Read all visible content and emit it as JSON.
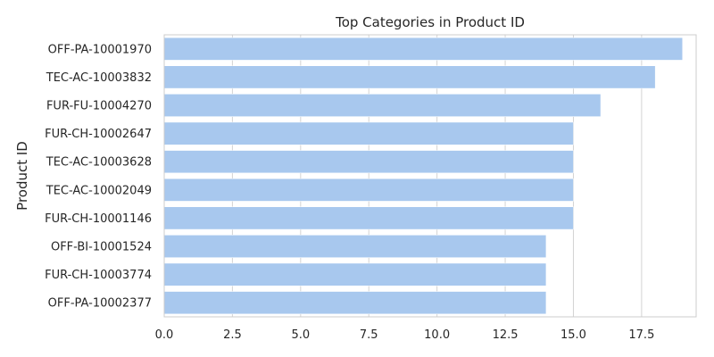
{
  "chart_data": {
    "type": "bar",
    "orientation": "horizontal",
    "title": "Top Categories in Product ID",
    "xlabel": "",
    "ylabel": "Product ID",
    "categories": [
      "OFF-PA-10001970",
      "TEC-AC-10003832",
      "FUR-FU-10004270",
      "FUR-CH-10002647",
      "TEC-AC-10003628",
      "TEC-AC-10002049",
      "FUR-CH-10001146",
      "OFF-BI-10001524",
      "FUR-CH-10003774",
      "OFF-PA-10002377"
    ],
    "values": [
      19,
      18,
      16,
      15,
      15,
      15,
      15,
      14,
      14,
      14
    ],
    "xlim": [
      0,
      19.5
    ],
    "xticks": [
      0,
      2.5,
      5,
      7.5,
      10,
      12.5,
      15,
      17.5
    ],
    "xtick_labels": [
      "0.0",
      "2.5",
      "5.0",
      "7.5",
      "10.0",
      "12.5",
      "15.0",
      "17.5"
    ],
    "grid": "vertical",
    "bar_color": "#a8c8ee",
    "legend": false
  }
}
